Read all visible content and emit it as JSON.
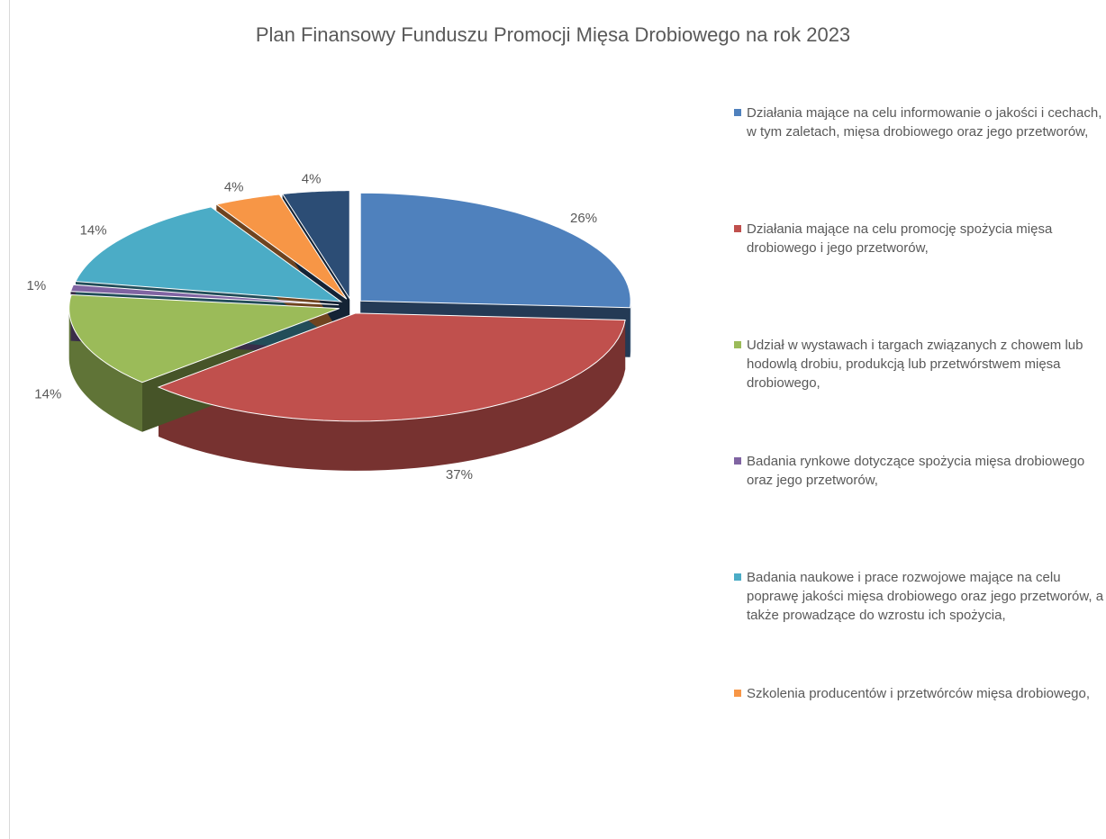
{
  "chart_data": {
    "type": "pie3d",
    "title": "Plan Finansowy Funduszu Promocji Mięsa Drobiowego na rok 2023",
    "categories": [
      "Działania mające na celu informowanie o jakości i cechach, w tym zaletach, mięsa drobiowego oraz jego przetworów,",
      "Działania mające na celu promocję spożycia mięsa drobiowego i jego przetworów,",
      "Udział w wystawach i targach związanych z chowem lub hodowlą drobiu, produkcją lub przetwórstwem mięsa drobiowego,",
      "Badania rynkowe dotyczące spożycia mięsa drobiowego oraz jego przetworów,",
      "Badania naukowe i prace rozwojowe mające na celu poprawę jakości mięsa drobiowego oraz jego przetworów, a także prowadzące do wzrostu ich spożycia,",
      "Szkolenia producentów i przetwórców mięsa drobiowego,",
      null
    ],
    "values": [
      26,
      37,
      14,
      1,
      14,
      4,
      4
    ],
    "value_labels": [
      "26%",
      "37%",
      "14%",
      "1%",
      "14%",
      "4%",
      "4%"
    ],
    "colors": [
      "#4f81bd",
      "#c0504d",
      "#9bbb59",
      "#8064a2",
      "#4bacc6",
      "#f79646",
      "#2c4d75"
    ],
    "legend": "right"
  }
}
